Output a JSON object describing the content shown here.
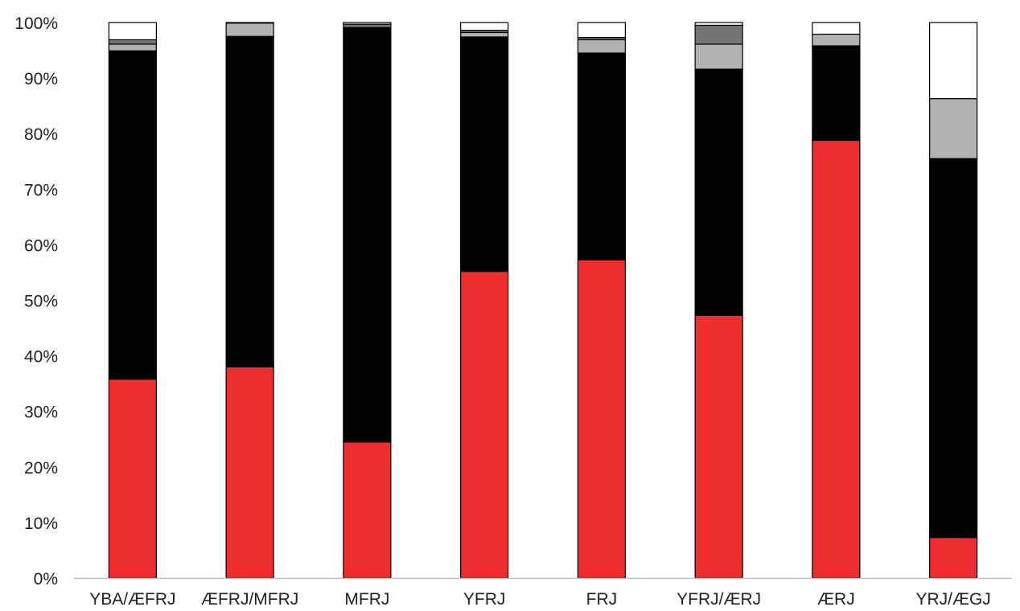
{
  "chart_data": {
    "type": "bar",
    "stacked": true,
    "percent": true,
    "title": "",
    "xlabel": "",
    "ylabel": "",
    "ylim": [
      0,
      100
    ],
    "yticks": [
      "0%",
      "10%",
      "20%",
      "30%",
      "40%",
      "50%",
      "60%",
      "70%",
      "80%",
      "90%",
      "100%"
    ],
    "grid": false,
    "legend": "none",
    "categories": [
      "YBA/ÆFRJ",
      "ÆFRJ/MFRJ",
      "MFRJ",
      "YFRJ",
      "FRJ",
      "YFRJ/ÆRJ",
      "ÆRJ",
      "YRJ/ÆGJ"
    ],
    "series": [
      {
        "color": "#ee2e2e",
        "values": [
          35.8,
          38.0,
          24.5,
          55.2,
          57.3,
          47.3,
          78.8,
          7.3
        ]
      },
      {
        "color": "#000000",
        "values": [
          59.1,
          59.5,
          74.6,
          42.2,
          37.2,
          44.3,
          17.0,
          68.2
        ]
      },
      {
        "color": "#b0b2b3",
        "values": [
          1.2,
          2.4,
          0.0,
          0.8,
          2.4,
          4.5,
          2.1,
          10.8
        ]
      },
      {
        "color": "#737577",
        "values": [
          0.8,
          0.0,
          0.6,
          0.4,
          0.4,
          3.4,
          0.0,
          0.0
        ]
      },
      {
        "color": "#ffffff",
        "values": [
          3.1,
          0.1,
          0.3,
          1.4,
          2.7,
          0.5,
          2.1,
          13.7
        ]
      }
    ],
    "colors": {
      "axis": "#c0c0c0",
      "bar_outline": "#000000",
      "text": "#222222"
    }
  }
}
